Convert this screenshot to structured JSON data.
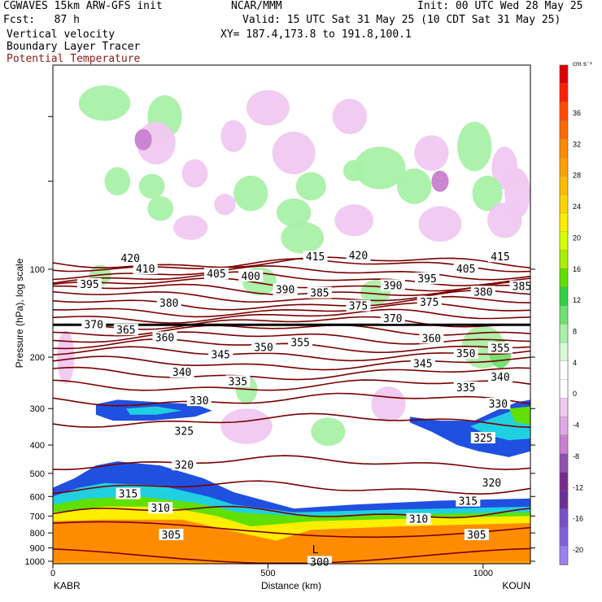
{
  "header": {
    "model": "CGWAVES 15km ARW-GFS init",
    "org": "NCAR/MMM",
    "init": "Init: 00 UTC Wed 28 May 25",
    "fcst": "Fcst:   87 h",
    "valid": "Valid: 15 UTC Sat 31 May 25 (10 CDT Sat 31 May 25)",
    "field1": "Vertical velocity",
    "xy": "XY= 187.4,173.8 to 191.8,100.1",
    "field2": "Boundary Layer Tracer",
    "field3": "Potential Temperature"
  },
  "colors": {
    "theta_contour": "#7a0000",
    "axis": "#000000",
    "pbl_tracer_text": "#8b1a1a"
  },
  "chart_data": {
    "type": "heatmap",
    "title": "",
    "xlabel": "Distance (km)",
    "ylabel": "Pressure (hPa), log scale",
    "x_ticks": [
      0,
      500,
      1000
    ],
    "xlim": [
      0,
      1110
    ],
    "y_ticks": [
      100,
      200,
      300,
      400,
      500,
      600,
      700,
      800,
      900,
      1000
    ],
    "ylim": [
      1020,
      20
    ],
    "y_scale": "log",
    "endpoints": {
      "left": "KABR",
      "right": "KOUN"
    },
    "colorbar": {
      "units": "cm s⁻¹",
      "labels": [
        "36",
        "32",
        "28",
        "24",
        "20",
        "16",
        "12",
        "8",
        "4",
        "0",
        "-4",
        "-8",
        "-12",
        "-16",
        "-20"
      ],
      "colors": [
        "#e00000",
        "#ff2000",
        "#ff4a00",
        "#ff6a00",
        "#ff8c00",
        "#ffa200",
        "#ffbb00",
        "#ffd400",
        "#ffee00",
        "#d8ff00",
        "#a8f000",
        "#60e000",
        "#30d040",
        "#70e070",
        "#a8f0a8",
        "#d8fcd8",
        "#ffffff",
        "#ffffff",
        "#f0c8f0",
        "#e0a8e8",
        "#c880d0",
        "#9050b0",
        "#7a2890",
        "#6a3098",
        "#7a50c8",
        "#8060e0",
        "#9a80f0"
      ]
    },
    "theta_contours": [
      {
        "value": 420,
        "p": 95
      },
      {
        "value": 415,
        "p": 97
      },
      {
        "value": 410,
        "p": 103
      },
      {
        "value": 405,
        "p": 108
      },
      {
        "value": 400,
        "p": 113
      },
      {
        "value": 395,
        "p": 118
      },
      {
        "value": 390,
        "p": 124
      },
      {
        "value": 385,
        "p": 131
      },
      {
        "value": 380,
        "p": 138
      },
      {
        "value": 375,
        "p": 145
      },
      {
        "value": 370,
        "p": 153
      },
      {
        "value": 365,
        "p": 162
      },
      {
        "value": 360,
        "p": 172
      },
      {
        "value": 355,
        "p": 183
      },
      {
        "value": 350,
        "p": 195
      },
      {
        "value": 345,
        "p": 210
      },
      {
        "value": 340,
        "p": 228
      },
      {
        "value": 335,
        "p": 250
      },
      {
        "value": 330,
        "p": 280
      },
      {
        "value": 325,
        "p": 330
      },
      {
        "value": 320,
        "p": 460
      },
      {
        "value": 315,
        "p": 560
      },
      {
        "value": 310,
        "p": 680
      },
      {
        "value": 305,
        "p": 780
      },
      {
        "value": 300,
        "p": 960
      }
    ],
    "contour_labels": [
      {
        "text": "420",
        "x": 180,
        "p": 92
      },
      {
        "text": "415",
        "x": 610,
        "p": 91
      },
      {
        "text": "420",
        "x": 710,
        "p": 90
      },
      {
        "text": "415",
        "x": 1040,
        "p": 91
      },
      {
        "text": "410",
        "x": 215,
        "p": 100
      },
      {
        "text": "405",
        "x": 380,
        "p": 104
      },
      {
        "text": "400",
        "x": 460,
        "p": 106
      },
      {
        "text": "405",
        "x": 960,
        "p": 100
      },
      {
        "text": "395",
        "x": 85,
        "p": 113
      },
      {
        "text": "395",
        "x": 870,
        "p": 108
      },
      {
        "text": "385",
        "x": 1090,
        "p": 115
      },
      {
        "text": "390",
        "x": 540,
        "p": 118
      },
      {
        "text": "385",
        "x": 620,
        "p": 121
      },
      {
        "text": "390",
        "x": 790,
        "p": 114
      },
      {
        "text": "380",
        "x": 270,
        "p": 131
      },
      {
        "text": "380",
        "x": 1000,
        "p": 120
      },
      {
        "text": "375",
        "x": 710,
        "p": 134
      },
      {
        "text": "375",
        "x": 875,
        "p": 130
      },
      {
        "text": "370",
        "x": 95,
        "p": 155
      },
      {
        "text": "370",
        "x": 790,
        "p": 148
      },
      {
        "text": "365",
        "x": 170,
        "p": 162
      },
      {
        "text": "360",
        "x": 260,
        "p": 172
      },
      {
        "text": "360",
        "x": 880,
        "p": 173
      },
      {
        "text": "355",
        "x": 575,
        "p": 179
      },
      {
        "text": "355",
        "x": 1040,
        "p": 187
      },
      {
        "text": "350",
        "x": 490,
        "p": 186
      },
      {
        "text": "350",
        "x": 960,
        "p": 195
      },
      {
        "text": "345",
        "x": 390,
        "p": 197
      },
      {
        "text": "345",
        "x": 860,
        "p": 211
      },
      {
        "text": "340",
        "x": 300,
        "p": 226
      },
      {
        "text": "340",
        "x": 1040,
        "p": 235
      },
      {
        "text": "335",
        "x": 430,
        "p": 243
      },
      {
        "text": "335",
        "x": 960,
        "p": 255
      },
      {
        "text": "330",
        "x": 340,
        "p": 283
      },
      {
        "text": "330",
        "x": 1035,
        "p": 290
      },
      {
        "text": "325",
        "x": 305,
        "p": 360
      },
      {
        "text": "325",
        "x": 1000,
        "p": 380
      },
      {
        "text": "320",
        "x": 305,
        "p": 470
      },
      {
        "text": "320",
        "x": 1020,
        "p": 540
      },
      {
        "text": "315",
        "x": 175,
        "p": 590
      },
      {
        "text": "315",
        "x": 965,
        "p": 625
      },
      {
        "text": "310",
        "x": 250,
        "p": 660
      },
      {
        "text": "310",
        "x": 850,
        "p": 720
      },
      {
        "text": "305",
        "x": 275,
        "p": 815
      },
      {
        "text": "305",
        "x": 985,
        "p": 815
      },
      {
        "text": "300",
        "x": 620,
        "p": 1010
      }
    ],
    "tropopause_line": {
      "p": 155
    },
    "features": [
      {
        "label": "L",
        "x": 610,
        "p": 910
      }
    ],
    "pbl_tracer_regions": [
      {
        "name": "pbl-orange",
        "color": "#ff8c00"
      },
      {
        "name": "pbl-yellow",
        "color": "#ffee00"
      },
      {
        "name": "pbl-green",
        "color": "#60e000"
      },
      {
        "name": "pbl-cyan",
        "color": "#20d0e0"
      },
      {
        "name": "pbl-blue",
        "color": "#2050e0"
      }
    ]
  }
}
